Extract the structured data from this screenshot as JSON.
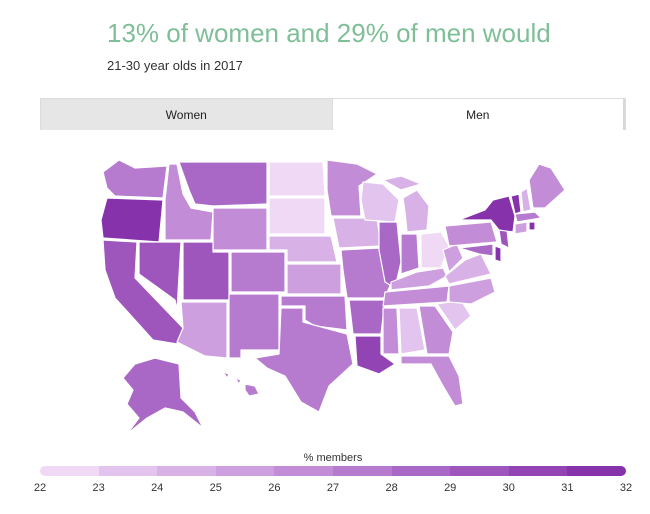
{
  "title": "13% of women and 29% of men would",
  "subtitle": "21-30 year olds in 2017",
  "tabs": [
    {
      "label": "Women",
      "active": false
    },
    {
      "label": "Men",
      "active": true
    }
  ],
  "legend": {
    "title": "% members",
    "ticks": [
      "22",
      "23",
      "24",
      "25",
      "26",
      "27",
      "28",
      "29",
      "30",
      "31",
      "32"
    ],
    "colors": [
      "#efd9f5",
      "#e3c4ee",
      "#d8b1e6",
      "#cd9fdf",
      "#c28cd7",
      "#b67ace",
      "#aa68c6",
      "#9e56bd",
      "#9244b4",
      "#8632ab"
    ]
  }
}
